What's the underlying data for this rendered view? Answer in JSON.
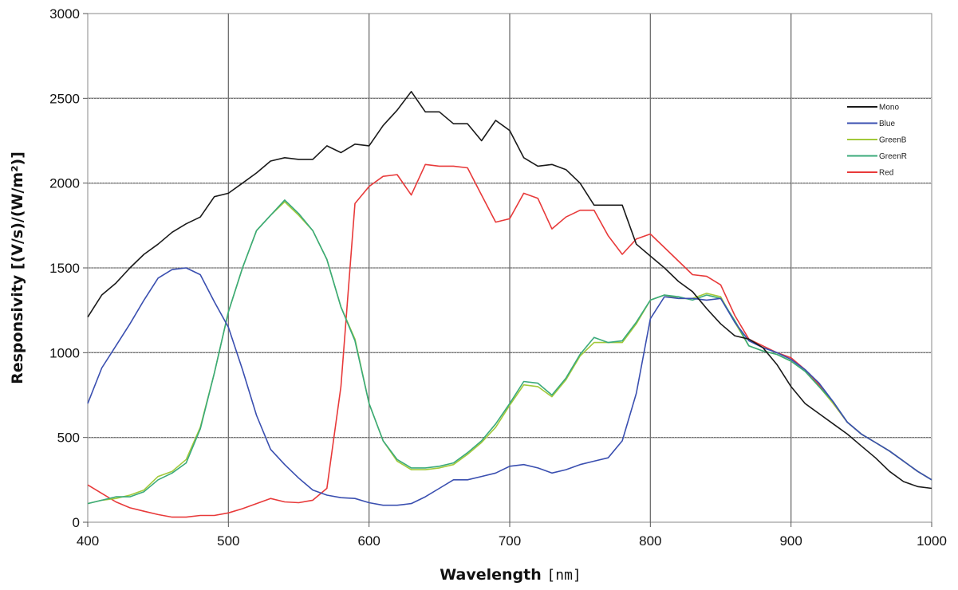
{
  "chart_data": {
    "type": "line",
    "xlabel": "Wavelength",
    "xlabel_unit": "[nm]",
    "ylabel": "Responsivity [(V/s)/(W/m²)]",
    "xlim": [
      400,
      1000
    ],
    "ylim": [
      0,
      3000
    ],
    "x_ticks": [
      "400",
      "500",
      "600",
      "700",
      "800",
      "900",
      "1000"
    ],
    "y_ticks": [
      "0",
      "500",
      "1000",
      "1500",
      "2000",
      "2500",
      "3000"
    ],
    "grid": true,
    "legend_position": "top-right",
    "x": [
      400,
      410,
      420,
      430,
      440,
      450,
      460,
      470,
      480,
      490,
      500,
      510,
      520,
      530,
      540,
      550,
      560,
      570,
      580,
      590,
      600,
      610,
      620,
      630,
      640,
      650,
      660,
      670,
      680,
      690,
      700,
      710,
      720,
      730,
      740,
      750,
      760,
      770,
      780,
      790,
      800,
      810,
      820,
      830,
      840,
      850,
      860,
      870,
      880,
      890,
      900,
      910,
      920,
      930,
      940,
      950,
      960,
      970,
      980,
      990,
      1000
    ],
    "series": [
      {
        "name": "Mono",
        "color": "#1a1a1a",
        "values": [
          1210,
          1340,
          1410,
          1500,
          1580,
          1640,
          1710,
          1760,
          1800,
          1920,
          1940,
          2000,
          2060,
          2130,
          2150,
          2140,
          2140,
          2220,
          2180,
          2230,
          2220,
          2340,
          2430,
          2540,
          2420,
          2420,
          2350,
          2350,
          2250,
          2370,
          2310,
          2150,
          2100,
          2110,
          2080,
          2000,
          1870,
          1870,
          1870,
          1640,
          1570,
          1500,
          1420,
          1360,
          1260,
          1170,
          1100,
          1080,
          1030,
          930,
          800,
          700,
          640,
          580,
          520,
          450,
          380,
          300,
          240,
          210,
          200
        ]
      },
      {
        "name": "Blue",
        "color": "#3a4fb0",
        "values": [
          700,
          910,
          1040,
          1170,
          1310,
          1440,
          1490,
          1500,
          1460,
          1300,
          1150,
          900,
          630,
          430,
          340,
          260,
          190,
          160,
          145,
          140,
          115,
          100,
          100,
          110,
          150,
          200,
          250,
          250,
          270,
          290,
          330,
          340,
          320,
          290,
          310,
          340,
          360,
          380,
          480,
          760,
          1200,
          1330,
          1320,
          1320,
          1310,
          1320,
          1180,
          1070,
          1030,
          1000,
          960,
          900,
          820,
          710,
          590,
          520,
          470,
          420,
          360,
          300,
          250
        ]
      },
      {
        "name": "GreenB",
        "color": "#a2c93a",
        "values": [
          110,
          130,
          140,
          160,
          190,
          270,
          300,
          370,
          560,
          880,
          1240,
          1500,
          1720,
          1810,
          1890,
          1810,
          1720,
          1550,
          1270,
          1080,
          700,
          480,
          360,
          310,
          310,
          320,
          340,
          400,
          470,
          560,
          690,
          810,
          800,
          740,
          840,
          980,
          1060,
          1060,
          1060,
          1170,
          1310,
          1340,
          1320,
          1320,
          1350,
          1330,
          1180,
          1040,
          1010,
          990,
          950,
          890,
          800,
          700,
          590,
          520,
          470,
          420,
          360,
          300,
          250
        ]
      },
      {
        "name": "GreenR",
        "color": "#3aaa7a",
        "values": [
          110,
          130,
          150,
          150,
          180,
          250,
          290,
          350,
          550,
          880,
          1240,
          1500,
          1720,
          1810,
          1900,
          1820,
          1720,
          1550,
          1270,
          1070,
          700,
          480,
          370,
          320,
          320,
          330,
          350,
          410,
          480,
          580,
          700,
          830,
          820,
          750,
          850,
          990,
          1090,
          1060,
          1070,
          1180,
          1310,
          1340,
          1330,
          1310,
          1340,
          1320,
          1190,
          1040,
          1010,
          990,
          950,
          890,
          800,
          710,
          590,
          520,
          470,
          420,
          360,
          300,
          250
        ]
      },
      {
        "name": "Red",
        "color": "#e83a3a",
        "values": [
          220,
          170,
          120,
          85,
          65,
          45,
          30,
          30,
          40,
          40,
          55,
          80,
          110,
          140,
          120,
          115,
          130,
          200,
          800,
          1880,
          1980,
          2040,
          2050,
          1930,
          2110,
          2100,
          2100,
          2090,
          1930,
          1770,
          1790,
          1940,
          1910,
          1730,
          1800,
          1840,
          1840,
          1690,
          1580,
          1670,
          1700,
          1620,
          1540,
          1460,
          1450,
          1400,
          1220,
          1080,
          1040,
          1000,
          970,
          900,
          810,
          700,
          590,
          520,
          470,
          420,
          360,
          300,
          250
        ]
      }
    ]
  }
}
